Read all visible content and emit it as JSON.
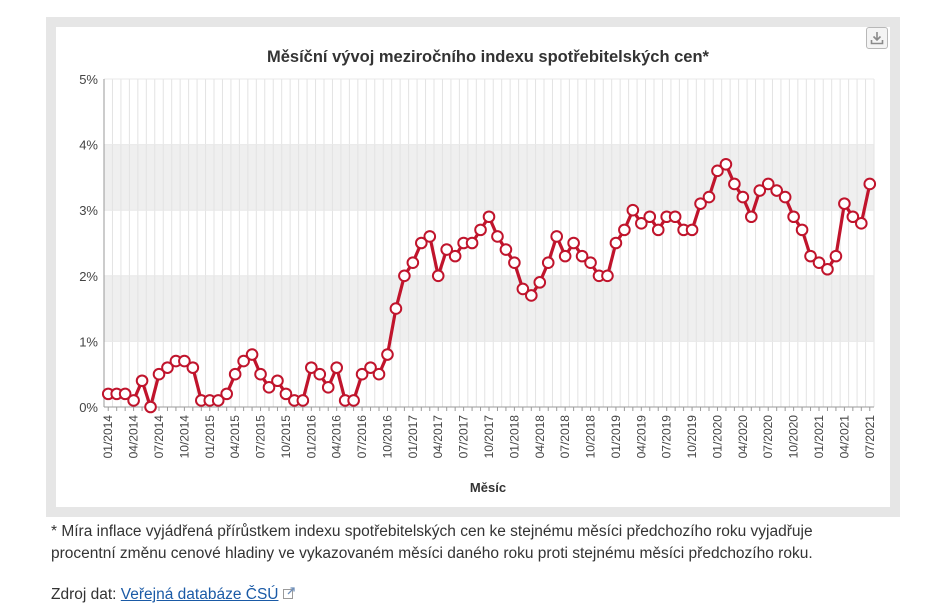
{
  "download_icon": "download-icon",
  "footnote": "* Míra inflace vyjádřená přírůstkem indexu spotřebitelských cen ke stejnému měsíci předchozího roku vyjadřuje procentní změnu cenové hladiny ve vykazovaném měsíci daného roku proti stejnému měsíci předchozího roku.",
  "source": {
    "label": "Zdroj dat:",
    "link_text": "Veřejná databáze ČSÚ",
    "link_icon": "external-link-icon"
  },
  "colors": {
    "line": "#c0142c",
    "band": "#efefef",
    "frame": "#e6e6e6"
  },
  "chart_data": {
    "type": "line",
    "title": "Měsíční vývoj meziročního indexu spotřebitelských cen*",
    "xlabel": "Měsíc",
    "ylabel": "",
    "ylim": [
      0,
      5
    ],
    "y_ticks": [
      "0%",
      "1%",
      "2%",
      "3%",
      "4%",
      "5%"
    ],
    "x_tick_labels": [
      "01/2014",
      "04/2014",
      "07/2014",
      "10/2014",
      "01/2015",
      "04/2015",
      "07/2015",
      "10/2015",
      "01/2016",
      "04/2016",
      "07/2016",
      "10/2016",
      "01/2017",
      "04/2017",
      "07/2017",
      "10/2017",
      "01/2018",
      "04/2018",
      "07/2018",
      "10/2018",
      "01/2019",
      "04/2019",
      "07/2019",
      "10/2019",
      "01/2020",
      "04/2020",
      "07/2020",
      "10/2020",
      "01/2021",
      "04/2021",
      "07/2021"
    ],
    "x_tick_every": 3,
    "legend": "none",
    "alternate_bands": true,
    "series": [
      {
        "values": [
          0.2,
          0.2,
          0.2,
          0.1,
          0.4,
          0.0,
          0.5,
          0.6,
          0.7,
          0.7,
          0.6,
          0.1,
          0.1,
          0.1,
          0.2,
          0.5,
          0.7,
          0.8,
          0.5,
          0.3,
          0.4,
          0.2,
          0.1,
          0.1,
          0.6,
          0.5,
          0.3,
          0.6,
          0.1,
          0.1,
          0.5,
          0.6,
          0.5,
          0.8,
          1.5,
          2.0,
          2.2,
          2.5,
          2.6,
          2.0,
          2.4,
          2.3,
          2.5,
          2.5,
          2.7,
          2.9,
          2.6,
          2.4,
          2.2,
          1.8,
          1.7,
          1.9,
          2.2,
          2.6,
          2.3,
          2.5,
          2.3,
          2.2,
          2.0,
          2.0,
          2.5,
          2.7,
          3.0,
          2.8,
          2.9,
          2.7,
          2.9,
          2.9,
          2.7,
          2.7,
          3.1,
          3.2,
          3.6,
          3.7,
          3.4,
          3.2,
          2.9,
          3.3,
          3.4,
          3.3,
          3.2,
          2.9,
          2.7,
          2.3,
          2.2,
          2.1,
          2.3,
          3.1,
          2.9,
          2.8,
          3.4
        ]
      }
    ]
  }
}
